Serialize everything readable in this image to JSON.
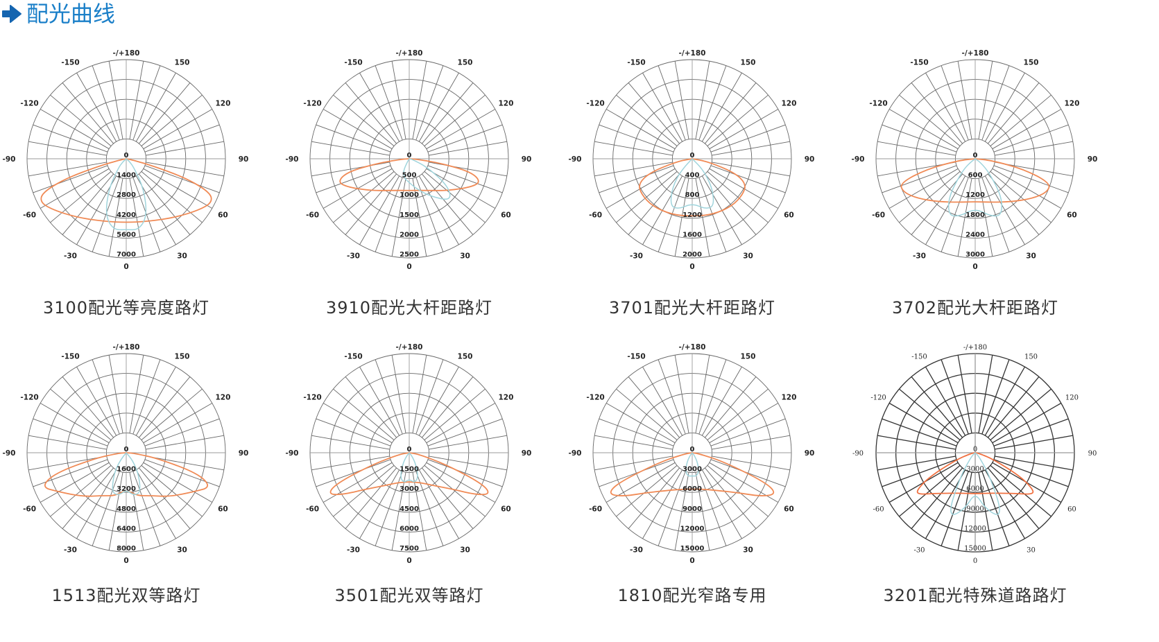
{
  "header": {
    "title": "配光曲线",
    "icon": "arrow-right-icon",
    "color": "#1a7fc8"
  },
  "chart_data": [
    {
      "type": "polar",
      "caption": "3100配光等亮度路灯",
      "grid_color": "#666666",
      "center_label": "0",
      "angle_ticks": [
        "-/+180",
        "150",
        "120",
        "90",
        "60",
        "30",
        "0",
        "-30",
        "-60",
        "-90",
        "-120",
        "-150"
      ],
      "radial_ticks": [
        1400,
        2800,
        4200,
        5600,
        7000
      ],
      "series": [
        {
          "color": "#f08a55",
          "values": [
            [
              -90,
              0
            ],
            [
              -80,
              400
            ],
            [
              -75,
              2000
            ],
            [
              -72,
              4500
            ],
            [
              -68,
              6400
            ],
            [
              -63,
              6800
            ],
            [
              -55,
              6300
            ],
            [
              -40,
              5400
            ],
            [
              -20,
              4700
            ],
            [
              0,
              4500
            ],
            [
              20,
              4700
            ],
            [
              40,
              5400
            ],
            [
              55,
              6300
            ],
            [
              63,
              6800
            ],
            [
              68,
              6400
            ],
            [
              72,
              4500
            ],
            [
              75,
              2000
            ],
            [
              80,
              400
            ],
            [
              90,
              0
            ]
          ]
        },
        {
          "color": "#9fd4dc",
          "values": [
            [
              -50,
              300
            ],
            [
              -40,
              900
            ],
            [
              -30,
              2500
            ],
            [
              -20,
              4300
            ],
            [
              -10,
              5100
            ],
            [
              0,
              5000
            ],
            [
              10,
              5100
            ],
            [
              20,
              4300
            ],
            [
              30,
              2500
            ],
            [
              40,
              900
            ],
            [
              50,
              300
            ]
          ]
        }
      ]
    },
    {
      "type": "polar",
      "caption": "3910配光大杆距路灯",
      "grid_color": "#666666",
      "center_label": "0",
      "angle_ticks": [
        "-/+180",
        "150",
        "120",
        "90",
        "60",
        "30",
        "0",
        "-30",
        "-60",
        "-90",
        "-120",
        "-150"
      ],
      "radial_ticks": [
        500,
        1000,
        1500,
        2000,
        2500
      ],
      "series": [
        {
          "color": "#f08a55",
          "values": [
            [
              -90,
              0
            ],
            [
              -86,
              200
            ],
            [
              -82,
              800
            ],
            [
              -78,
              1600
            ],
            [
              -72,
              1900
            ],
            [
              -65,
              1700
            ],
            [
              -50,
              1250
            ],
            [
              -30,
              920
            ],
            [
              0,
              800
            ],
            [
              30,
              920
            ],
            [
              50,
              1250
            ],
            [
              65,
              1700
            ],
            [
              72,
              1900
            ],
            [
              78,
              1600
            ],
            [
              82,
              800
            ],
            [
              86,
              200
            ],
            [
              90,
              0
            ]
          ]
        },
        {
          "color": "#9fd4dc",
          "values": [
            [
              -30,
              300
            ],
            [
              -15,
              500
            ],
            [
              0,
              600
            ],
            [
              15,
              800
            ],
            [
              30,
              1100
            ],
            [
              45,
              1500
            ],
            [
              55,
              1200
            ],
            [
              65,
              500
            ],
            [
              75,
              100
            ]
          ]
        }
      ]
    },
    {
      "type": "polar",
      "caption": "3701配光大杆距路灯",
      "grid_color": "#666666",
      "center_label": "0",
      "angle_ticks": [
        "-/+180",
        "150",
        "120",
        "90",
        "60",
        "30",
        "0",
        "-30",
        "-60",
        "-90",
        "-120",
        "-150"
      ],
      "radial_ticks": [
        400,
        800,
        1200,
        1600,
        2000
      ],
      "series": [
        {
          "color": "#f08a55",
          "values": [
            [
              -90,
              0
            ],
            [
              -80,
              300
            ],
            [
              -72,
              900
            ],
            [
              -65,
              1200
            ],
            [
              -55,
              1250
            ],
            [
              -40,
              1250
            ],
            [
              -20,
              1200
            ],
            [
              0,
              1160
            ],
            [
              20,
              1200
            ],
            [
              40,
              1250
            ],
            [
              55,
              1250
            ],
            [
              65,
              1200
            ],
            [
              72,
              900
            ],
            [
              80,
              300
            ],
            [
              90,
              0
            ]
          ]
        },
        {
          "color": "#9fd4dc",
          "values": [
            [
              -45,
              300
            ],
            [
              -35,
              700
            ],
            [
              -25,
              1050
            ],
            [
              -15,
              1050
            ],
            [
              0,
              900
            ],
            [
              15,
              1050
            ],
            [
              25,
              1050
            ],
            [
              35,
              700
            ],
            [
              45,
              300
            ]
          ]
        }
      ]
    },
    {
      "type": "polar",
      "caption": "3702配光大杆距路灯",
      "grid_color": "#666666",
      "center_label": "0",
      "angle_ticks": [
        "-/+180",
        "150",
        "120",
        "90",
        "60",
        "30",
        "0",
        "-30",
        "-60",
        "-90",
        "-120",
        "-150"
      ],
      "radial_ticks": [
        600,
        1200,
        1800,
        2400,
        3000
      ],
      "series": [
        {
          "color": "#f08a55",
          "values": [
            [
              -90,
              0
            ],
            [
              -84,
              500
            ],
            [
              -78,
              1500
            ],
            [
              -72,
              2400
            ],
            [
              -65,
              2400
            ],
            [
              -55,
              2100
            ],
            [
              -40,
              1700
            ],
            [
              -20,
              1400
            ],
            [
              0,
              1300
            ],
            [
              20,
              1400
            ],
            [
              40,
              1700
            ],
            [
              55,
              2100
            ],
            [
              65,
              2400
            ],
            [
              72,
              2400
            ],
            [
              78,
              1500
            ],
            [
              84,
              500
            ],
            [
              90,
              0
            ]
          ]
        },
        {
          "color": "#9fd4dc",
          "values": [
            [
              -55,
              200
            ],
            [
              -45,
              600
            ],
            [
              -35,
              1400
            ],
            [
              -25,
              1900
            ],
            [
              -15,
              1800
            ],
            [
              0,
              1500
            ],
            [
              15,
              1800
            ],
            [
              25,
              1900
            ],
            [
              35,
              1400
            ],
            [
              45,
              600
            ],
            [
              55,
              200
            ]
          ]
        }
      ]
    },
    {
      "type": "polar",
      "caption": "1513配光双等路灯",
      "grid_color": "#666666",
      "center_label": "0",
      "angle_ticks": [
        "-/+180",
        "150",
        "120",
        "90",
        "60",
        "30",
        "0",
        "-30",
        "-60",
        "-90",
        "-120",
        "-150"
      ],
      "radial_ticks": [
        1600,
        3200,
        4800,
        6400,
        8000
      ],
      "series": [
        {
          "color": "#f08a55",
          "values": [
            [
              -90,
              0
            ],
            [
              -86,
              600
            ],
            [
              -80,
              2500
            ],
            [
              -74,
              6000
            ],
            [
              -68,
              7400
            ],
            [
              -60,
              6300
            ],
            [
              -45,
              5000
            ],
            [
              -30,
              4000
            ],
            [
              -15,
              3600
            ],
            [
              0,
              3000
            ],
            [
              15,
              3600
            ],
            [
              30,
              4000
            ],
            [
              45,
              5000
            ],
            [
              60,
              6300
            ],
            [
              68,
              7400
            ],
            [
              74,
              6000
            ],
            [
              80,
              2500
            ],
            [
              86,
              600
            ],
            [
              90,
              0
            ]
          ]
        },
        {
          "color": "#9fd4dc",
          "values": [
            [
              -40,
              800
            ],
            [
              -30,
              2000
            ],
            [
              -20,
              3400
            ],
            [
              -10,
              3500
            ],
            [
              0,
              3000
            ],
            [
              10,
              3500
            ],
            [
              20,
              3400
            ],
            [
              30,
              2000
            ],
            [
              40,
              800
            ]
          ]
        }
      ]
    },
    {
      "type": "polar",
      "caption": "3501配光双等路灯",
      "grid_color": "#666666",
      "center_label": "0",
      "angle_ticks": [
        "-/+180",
        "150",
        "120",
        "90",
        "60",
        "30",
        "0",
        "-30",
        "-60",
        "-90",
        "-120",
        "-150"
      ],
      "radial_ticks": [
        1500,
        3000,
        4500,
        6000,
        7500
      ],
      "series": [
        {
          "color": "#f08a55",
          "values": [
            [
              -90,
              0
            ],
            [
              -80,
              800
            ],
            [
              -72,
              3000
            ],
            [
              -67,
              6000
            ],
            [
              -63,
              6900
            ],
            [
              -58,
              6000
            ],
            [
              -50,
              4300
            ],
            [
              -35,
              3000
            ],
            [
              -20,
              2400
            ],
            [
              0,
              2200
            ],
            [
              20,
              2400
            ],
            [
              35,
              3000
            ],
            [
              50,
              4300
            ],
            [
              58,
              6000
            ],
            [
              63,
              6900
            ],
            [
              67,
              6000
            ],
            [
              72,
              3000
            ],
            [
              80,
              800
            ],
            [
              90,
              0
            ]
          ]
        },
        {
          "color": "#9fd4dc",
          "values": [
            [
              -40,
              300
            ],
            [
              -30,
              1000
            ],
            [
              -20,
              2000
            ],
            [
              -10,
              2300
            ],
            [
              0,
              2000
            ],
            [
              10,
              2300
            ],
            [
              20,
              2000
            ],
            [
              30,
              1000
            ],
            [
              40,
              300
            ]
          ]
        }
      ]
    },
    {
      "type": "polar",
      "caption": "1810配光窄路专用",
      "grid_color": "#666666",
      "center_label": "0",
      "angle_ticks": [
        "-/+180",
        "150",
        "120",
        "90",
        "60",
        "30",
        "0",
        "-30",
        "-60",
        "-90",
        "-120",
        "-150"
      ],
      "radial_ticks": [
        3000,
        6000,
        9000,
        12000,
        15000
      ],
      "series": [
        {
          "color": "#f08a55",
          "values": [
            [
              -90,
              0
            ],
            [
              -82,
              1000
            ],
            [
              -74,
              5000
            ],
            [
              -68,
              12000
            ],
            [
              -64,
              14200
            ],
            [
              -58,
              12500
            ],
            [
              -50,
              9500
            ],
            [
              -35,
              7000
            ],
            [
              -20,
              5900
            ],
            [
              0,
              5500
            ],
            [
              20,
              5900
            ],
            [
              35,
              7000
            ],
            [
              50,
              9500
            ],
            [
              58,
              12500
            ],
            [
              64,
              14200
            ],
            [
              68,
              12000
            ],
            [
              74,
              5000
            ],
            [
              82,
              1000
            ],
            [
              90,
              0
            ]
          ]
        },
        {
          "color": "#9fd4dc",
          "values": [
            [
              -40,
              400
            ],
            [
              -30,
              1500
            ],
            [
              -20,
              3000
            ],
            [
              -10,
              3600
            ],
            [
              0,
              3500
            ],
            [
              10,
              3600
            ],
            [
              20,
              3000
            ],
            [
              30,
              1500
            ],
            [
              40,
              400
            ]
          ]
        }
      ]
    },
    {
      "type": "polar",
      "caption": "3201配光特殊道路路灯",
      "grid_color": "#333333",
      "center_label": "0",
      "angle_ticks": [
        "-/+180",
        "150",
        "120",
        "90",
        "60",
        "30",
        "0",
        "-30",
        "-60",
        "-90",
        "-120",
        "-150"
      ],
      "radial_ticks": [
        3000,
        6000,
        9000,
        12000,
        15000
      ],
      "series": [
        {
          "color": "#f07040",
          "values": [
            [
              -90,
              0
            ],
            [
              -80,
              600
            ],
            [
              -70,
              3000
            ],
            [
              -62,
              8000
            ],
            [
              -57,
              10700
            ],
            [
              -53,
              10500
            ],
            [
              -45,
              8700
            ],
            [
              -35,
              7500
            ],
            [
              -20,
              6500
            ],
            [
              0,
              6200
            ],
            [
              20,
              6500
            ],
            [
              35,
              7500
            ],
            [
              45,
              8700
            ],
            [
              53,
              10500
            ],
            [
              57,
              10700
            ],
            [
              62,
              8000
            ],
            [
              70,
              3000
            ],
            [
              80,
              600
            ],
            [
              90,
              0
            ]
          ]
        },
        {
          "color": "#9fd4dc",
          "values": [
            [
              -50,
              300
            ],
            [
              -40,
              1200
            ],
            [
              -32,
              4000
            ],
            [
              -25,
              9000
            ],
            [
              -20,
              10300
            ],
            [
              -10,
              8500
            ],
            [
              0,
              6000
            ],
            [
              10,
              8500
            ],
            [
              20,
              10300
            ],
            [
              25,
              9000
            ],
            [
              32,
              4000
            ],
            [
              40,
              1200
            ],
            [
              50,
              300
            ]
          ]
        }
      ]
    }
  ]
}
